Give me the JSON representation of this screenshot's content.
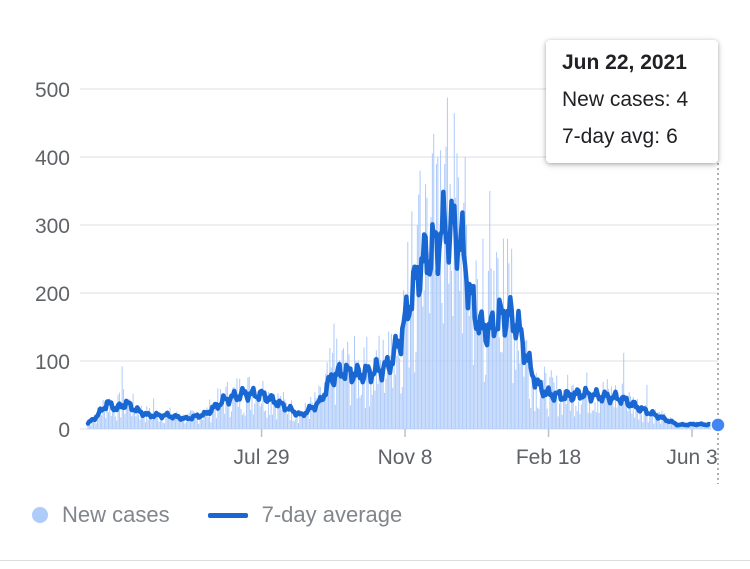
{
  "colors": {
    "bars": "#aecbfa",
    "line": "#1967d2",
    "grid": "#e8eaed",
    "axis_text": "#5f6368",
    "cursor_dot": "#4285f4"
  },
  "chart_data": {
    "type": "bar",
    "series": [
      {
        "name": "New cases",
        "type": "bar"
      },
      {
        "name": "7-day average",
        "type": "line"
      }
    ],
    "ylim": [
      0,
      500
    ],
    "yticks": [
      "0",
      "100",
      "200",
      "300",
      "400",
      "500"
    ],
    "xticks": [
      "Jul 29",
      "Nov 8",
      "Feb 18",
      "Jun 3"
    ],
    "x_start": "2020-03-18",
    "x_end": "2021-06-22",
    "legend_position": "bottom",
    "grid": true,
    "avg_points": [
      [
        "2020-03-18",
        8
      ],
      [
        "2020-03-25",
        20
      ],
      [
        "2020-04-01",
        38
      ],
      [
        "2020-04-08",
        30
      ],
      [
        "2020-04-15",
        38
      ],
      [
        "2020-04-22",
        28
      ],
      [
        "2020-05-01",
        20
      ],
      [
        "2020-05-15",
        20
      ],
      [
        "2020-05-29",
        15
      ],
      [
        "2020-06-12",
        22
      ],
      [
        "2020-06-26",
        43
      ],
      [
        "2020-07-10",
        52
      ],
      [
        "2020-07-24",
        50
      ],
      [
        "2020-08-07",
        35
      ],
      [
        "2020-08-21",
        20
      ],
      [
        "2020-09-04",
        40
      ],
      [
        "2020-09-12",
        75
      ],
      [
        "2020-09-20",
        85
      ],
      [
        "2020-10-02",
        80
      ],
      [
        "2020-10-14",
        85
      ],
      [
        "2020-10-24",
        92
      ],
      [
        "2020-11-02",
        135
      ],
      [
        "2020-11-10",
        200
      ],
      [
        "2020-11-18",
        248
      ],
      [
        "2020-11-25",
        262
      ],
      [
        "2020-12-02",
        292
      ],
      [
        "2020-12-09",
        297
      ],
      [
        "2020-12-16",
        278
      ],
      [
        "2020-12-23",
        195
      ],
      [
        "2020-12-30",
        150
      ],
      [
        "2021-01-06",
        145
      ],
      [
        "2021-01-13",
        165
      ],
      [
        "2021-01-20",
        168
      ],
      [
        "2021-01-27",
        150
      ],
      [
        "2021-02-03",
        98
      ],
      [
        "2021-02-10",
        65
      ],
      [
        "2021-02-17",
        52
      ],
      [
        "2021-03-01",
        48
      ],
      [
        "2021-03-15",
        52
      ],
      [
        "2021-03-29",
        48
      ],
      [
        "2021-04-12",
        45
      ],
      [
        "2021-04-26",
        30
      ],
      [
        "2021-05-10",
        18
      ],
      [
        "2021-05-24",
        6
      ],
      [
        "2021-06-07",
        7
      ],
      [
        "2021-06-22",
        6
      ]
    ],
    "spikes": [
      [
        "2020-04-12",
        92
      ],
      [
        "2020-05-05",
        45
      ],
      [
        "2020-07-20",
        55
      ],
      [
        "2020-09-14",
        155
      ],
      [
        "2020-10-06",
        120
      ],
      [
        "2020-10-26",
        140
      ],
      [
        "2020-11-10",
        320
      ],
      [
        "2020-11-14",
        300
      ],
      [
        "2020-11-16",
        380
      ],
      [
        "2020-11-20",
        360
      ],
      [
        "2020-11-28",
        390
      ],
      [
        "2020-12-01",
        410
      ],
      [
        "2020-12-05",
        415
      ],
      [
        "2020-12-08",
        360
      ],
      [
        "2020-12-12",
        340
      ],
      [
        "2020-12-20",
        300
      ],
      [
        "2021-01-01",
        280
      ],
      [
        "2021-01-06",
        350
      ],
      [
        "2021-01-11",
        260
      ],
      [
        "2021-01-16",
        280
      ],
      [
        "2021-01-22",
        265
      ],
      [
        "2021-03-26",
        60
      ],
      [
        "2021-04-14",
        112
      ],
      [
        "2021-05-01",
        65
      ]
    ],
    "tooltip": {
      "date": "Jun 22, 2021",
      "new_cases_label": "New cases:",
      "new_cases": 4,
      "avg_label": "7-day avg:",
      "avg": 6
    }
  }
}
